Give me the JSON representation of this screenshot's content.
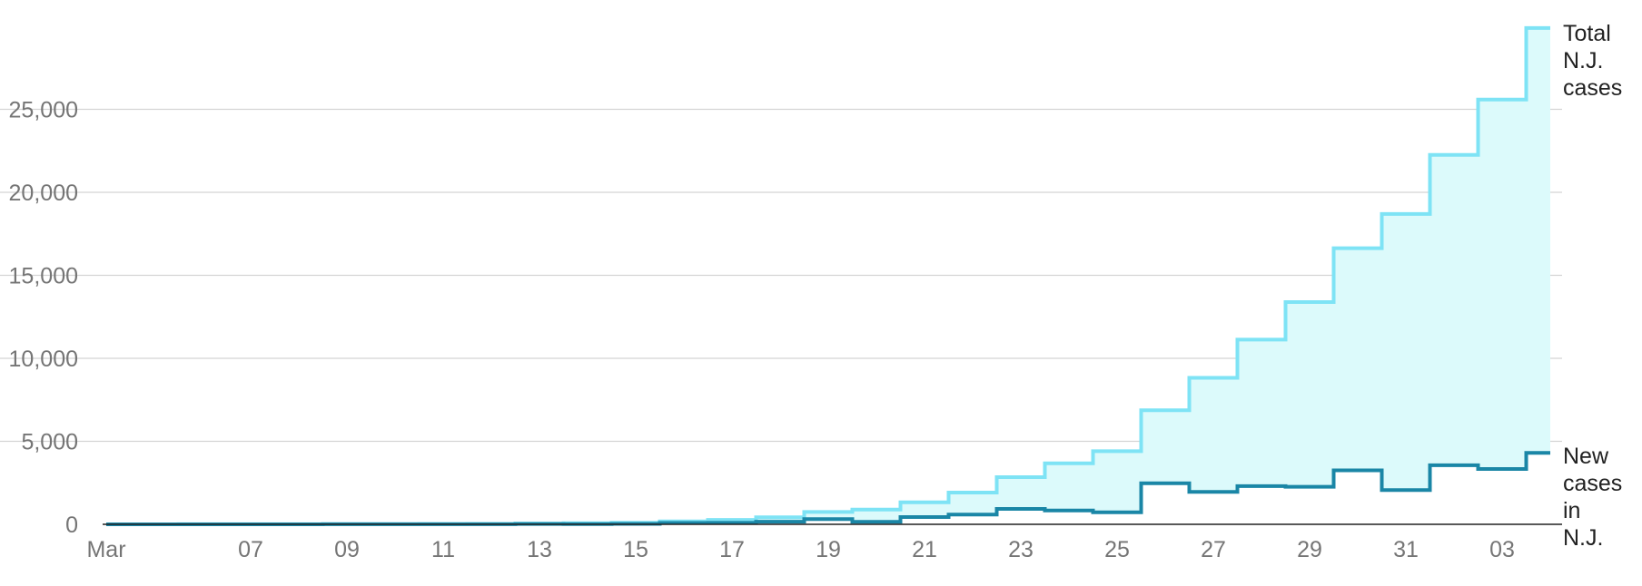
{
  "chart_data": {
    "type": "line",
    "step": true,
    "x": [
      "Mar 04",
      "Mar 05",
      "Mar 06",
      "Mar 07",
      "Mar 08",
      "Mar 09",
      "Mar 10",
      "Mar 11",
      "Mar 12",
      "Mar 13",
      "Mar 14",
      "Mar 15",
      "Mar 16",
      "Mar 17",
      "Mar 18",
      "Mar 19",
      "Mar 20",
      "Mar 21",
      "Mar 22",
      "Mar 23",
      "Mar 24",
      "Mar 25",
      "Mar 26",
      "Mar 27",
      "Mar 28",
      "Mar 29",
      "Mar 30",
      "Mar 31",
      "Apr 01",
      "Apr 02",
      "Apr 03"
    ],
    "x_tick_labels": [
      "Mar",
      "07",
      "09",
      "11",
      "13",
      "15",
      "17",
      "19",
      "21",
      "23",
      "25",
      "27",
      "29",
      "31",
      "03"
    ],
    "y_ticks": [
      "0",
      "5,000",
      "10,000",
      "15,000",
      "20,000",
      "25,000"
    ],
    "ylim": [
      0,
      30000
    ],
    "grid": true,
    "series": [
      {
        "name": "Total N.J. cases",
        "label_lines": [
          "Total",
          "N.J.",
          "cases"
        ],
        "color": "#7ee3f5",
        "fill": "#dcfafb",
        "values": [
          1,
          2,
          4,
          5,
          6,
          11,
          15,
          23,
          29,
          50,
          69,
          98,
          178,
          267,
          427,
          742,
          890,
          1327,
          1914,
          2844,
          3675,
          4402,
          6876,
          8825,
          11124,
          13386,
          16636,
          18696,
          22255,
          25590,
          29895
        ]
      },
      {
        "name": "New cases in N.J.",
        "label_lines": [
          "New",
          "cases",
          "in",
          "N.J."
        ],
        "color": "#1a86a6",
        "values": [
          1,
          1,
          2,
          1,
          1,
          5,
          4,
          8,
          6,
          21,
          19,
          29,
          80,
          89,
          160,
          315,
          148,
          437,
          587,
          930,
          831,
          727,
          2474,
          1949,
          2299,
          2262,
          3250,
          2060,
          3559,
          3335,
          4305
        ]
      }
    ]
  }
}
